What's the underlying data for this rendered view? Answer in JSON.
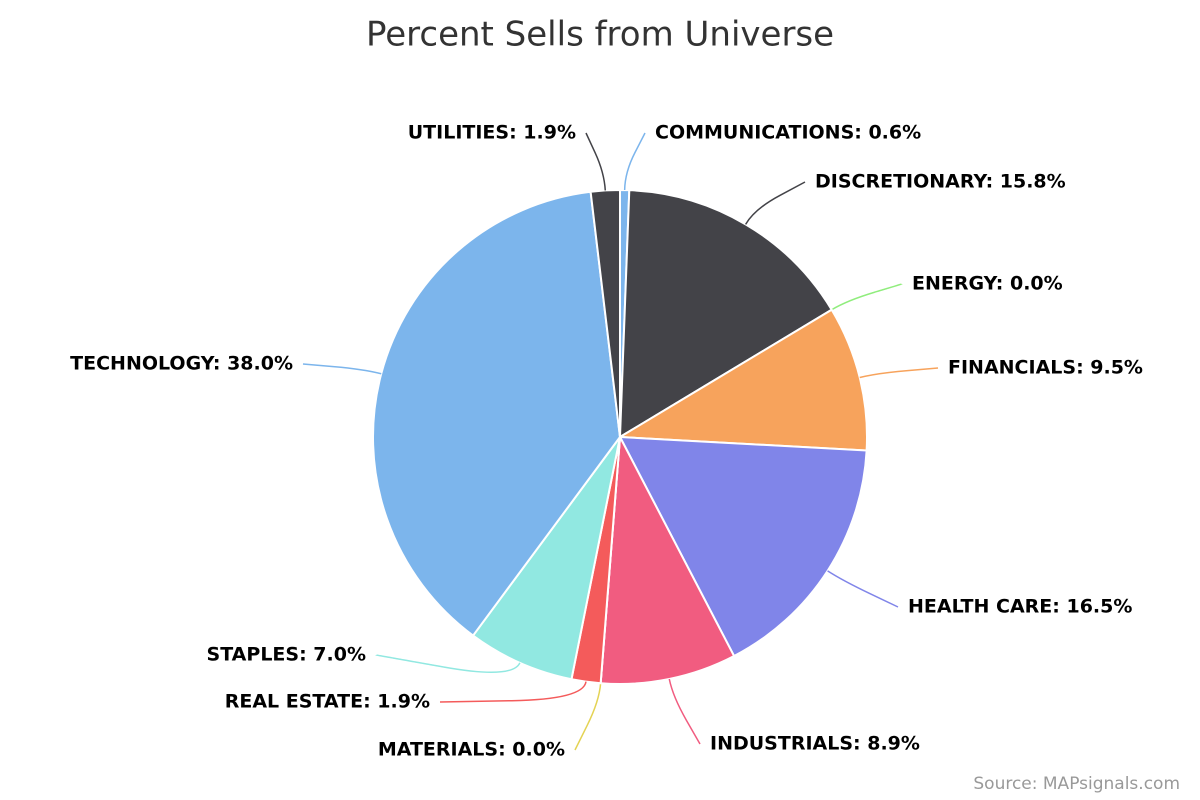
{
  "chart_data": {
    "type": "pie",
    "title": "Percent Sells from Universe",
    "values": [
      0.6,
      15.8,
      0.0,
      9.5,
      16.5,
      8.9,
      0.0,
      1.9,
      7.0,
      38.0,
      1.9
    ],
    "value_labels": [
      "COMMUNICATIONS: 0.6%",
      "DISCRETIONARY: 15.8%",
      "ENERGY: 0.0%",
      "FINANCIALS: 9.5%",
      "HEALTH CARE: 16.5%",
      "INDUSTRIALS: 8.9%",
      "MATERIALS: 0.0%",
      "REAL ESTATE: 1.9%",
      "STAPLES: 7.0%",
      "TECHNOLOGY: 38.0%",
      "UTILITIES: 1.9%"
    ],
    "colors": [
      "#7cb5ec",
      "#434348",
      "#90ed7d",
      "#f7a35c",
      "#8085e9",
      "#f15c80",
      "#e4d354",
      "#f45b5b",
      "#91e8e1",
      "#7cb5ec",
      "#434348"
    ],
    "source": "Source: MAPsignals.com"
  }
}
